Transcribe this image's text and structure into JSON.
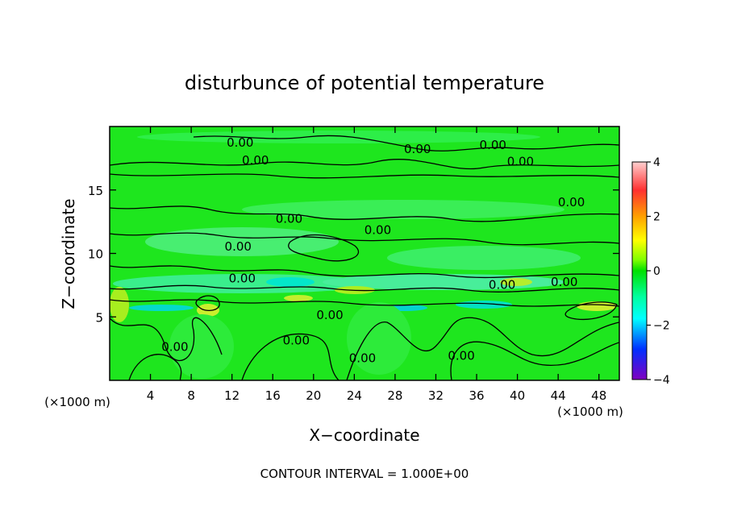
{
  "chart_data": {
    "type": "heatmap",
    "title": "disturbunce of potential temperature",
    "xlabel": "X−coordinate",
    "ylabel": "Z−coordinate",
    "x_unit_left": "(×1000 m)",
    "x_unit_right": "(×1000 m)",
    "footer": "CONTOUR INTERVAL = 1.000E+00",
    "xlim": [
      0,
      50
    ],
    "ylim": [
      0,
      20
    ],
    "x_ticks": [
      4,
      8,
      12,
      16,
      20,
      24,
      28,
      32,
      36,
      40,
      44,
      48
    ],
    "y_ticks": [
      5,
      10,
      15
    ],
    "colorbar": {
      "range": [
        -4,
        4
      ],
      "ticks": [
        4,
        2,
        0,
        -2,
        -4
      ],
      "tick_labels": [
        "4",
        "2",
        "0",
        "−2",
        "−4"
      ],
      "colors": [
        "#ffd0d0",
        "#ff0000",
        "#ffa000",
        "#ffff00",
        "#00ff00",
        "#00ffff",
        "#0000ff",
        "#8000c0"
      ]
    },
    "contour_labels": [
      {
        "text": "0.00",
        "x": 12.8,
        "z": 18.8
      },
      {
        "text": "0.00",
        "x": 14.3,
        "z": 17.4
      },
      {
        "text": "0.00",
        "x": 30.2,
        "z": 18.3
      },
      {
        "text": "0.00",
        "x": 37.6,
        "z": 18.6
      },
      {
        "text": "0.00",
        "x": 40.3,
        "z": 17.3
      },
      {
        "text": "0.00",
        "x": 45.3,
        "z": 14.1
      },
      {
        "text": "0.00",
        "x": 17.6,
        "z": 12.8
      },
      {
        "text": "0.00",
        "x": 26.3,
        "z": 11.9
      },
      {
        "text": "0.00",
        "x": 12.6,
        "z": 10.6
      },
      {
        "text": "0.00",
        "x": 13.0,
        "z": 8.1
      },
      {
        "text": "0.00",
        "x": 38.5,
        "z": 7.6
      },
      {
        "text": "0.00",
        "x": 44.6,
        "z": 7.8
      },
      {
        "text": "0.00",
        "x": 21.6,
        "z": 5.2
      },
      {
        "text": "0.00",
        "x": 18.3,
        "z": 3.2
      },
      {
        "text": "0.00",
        "x": 6.4,
        "z": 2.7
      },
      {
        "text": "0.00",
        "x": 24.8,
        "z": 1.8
      },
      {
        "text": "0.00",
        "x": 34.5,
        "z": 2.0
      }
    ]
  }
}
